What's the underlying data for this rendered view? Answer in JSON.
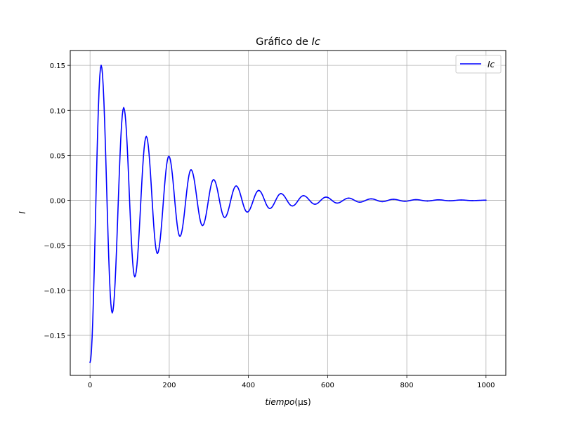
{
  "chart_data": {
    "type": "line",
    "title": "Gráfico de ",
    "title_math": "Ic",
    "xlabel": "tiempo",
    "xlabel_unit": "(μs)",
    "ylabel": "I",
    "xlim": [
      -50,
      1050
    ],
    "ylim": [
      -0.1945,
      0.1665
    ],
    "xticks": [
      0,
      200,
      400,
      600,
      800,
      1000
    ],
    "xtick_labels": [
      "0",
      "200",
      "400",
      "600",
      "800",
      "1000"
    ],
    "yticks": [
      -0.15,
      -0.1,
      -0.05,
      0.0,
      0.05,
      0.1,
      0.15
    ],
    "ytick_labels": [
      "−0.15",
      "−0.10",
      "−0.05",
      "0.00",
      "0.05",
      "0.10",
      "0.15"
    ],
    "grid": true,
    "legend_position": "top-right",
    "series": [
      {
        "name": "Ic",
        "color": "#0000ff",
        "x": [
          0,
          28,
          56,
          85,
          113,
          142,
          170,
          199,
          227,
          255,
          284,
          312,
          340,
          369,
          397,
          426,
          454,
          482,
          511,
          539,
          568,
          596,
          624,
          653,
          681,
          710,
          738,
          766,
          795,
          823,
          852,
          880,
          908,
          937,
          965,
          1000
        ],
        "y": [
          -0.18,
          0.15,
          -0.125,
          0.103,
          -0.085,
          0.071,
          -0.059,
          0.049,
          -0.04,
          0.034,
          -0.028,
          0.023,
          -0.019,
          0.016,
          -0.013,
          0.011,
          -0.009,
          0.0075,
          -0.0062,
          0.0052,
          -0.0043,
          0.0036,
          -0.003,
          0.0025,
          -0.002,
          0.0017,
          -0.0014,
          0.0012,
          -0.001,
          0.0008,
          -0.0007,
          0.0006,
          -0.0005,
          0.0004,
          -0.0003,
          0.0002
        ]
      }
    ]
  }
}
